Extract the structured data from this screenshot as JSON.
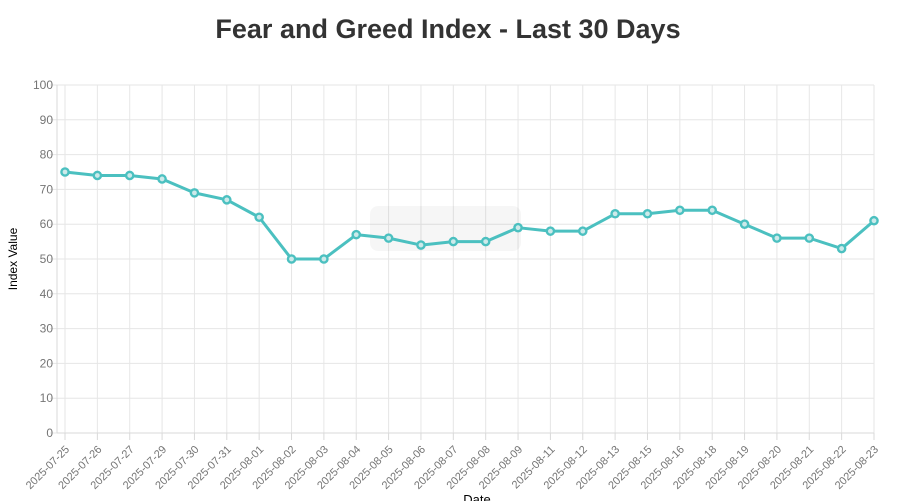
{
  "chart": {
    "colors": {
      "line": "#4bc0c0",
      "point_fill": "#cdeaea",
      "grid": "#e6e6e6",
      "axis_border": "#d9d9d9",
      "title": "#333333",
      "tick_label": "#757575",
      "axis_title": "#6b6b6b",
      "watermark": "rgba(0,0,0,0.035)"
    }
  },
  "chart_data": {
    "type": "line",
    "title": "Fear and Greed Index - Last 30 Days",
    "xlabel": "Date",
    "ylabel": "Index Value",
    "ylim": [
      0,
      100
    ],
    "ytick_step": 10,
    "grid": true,
    "legend": false,
    "categories": [
      "2025-07-25",
      "2025-07-26",
      "2025-07-27",
      "2025-07-29",
      "2025-07-30",
      "2025-07-31",
      "2025-08-01",
      "2025-08-02",
      "2025-08-03",
      "2025-08-04",
      "2025-08-05",
      "2025-08-06",
      "2025-08-07",
      "2025-08-08",
      "2025-08-09",
      "2025-08-11",
      "2025-08-12",
      "2025-08-13",
      "2025-08-15",
      "2025-08-16",
      "2025-08-18",
      "2025-08-19",
      "2025-08-20",
      "2025-08-21",
      "2025-08-22",
      "2025-08-23"
    ],
    "values": [
      75,
      74,
      74,
      73,
      69,
      67,
      62,
      50,
      50,
      57,
      56,
      54,
      55,
      55,
      59,
      58,
      58,
      63,
      63,
      64,
      64,
      60,
      56,
      56,
      53,
      61
    ]
  }
}
